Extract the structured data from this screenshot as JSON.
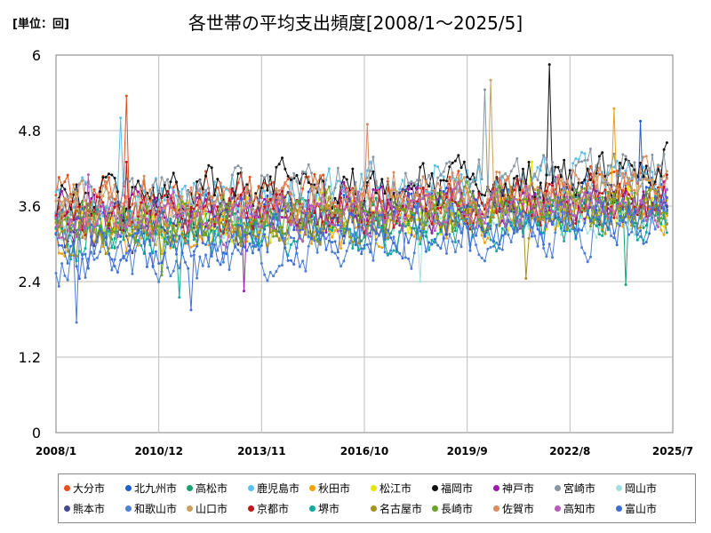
{
  "header": {
    "unit": "[単位：回]",
    "title": "各世帯の平均支出頻度[2008/1～2025/5]"
  },
  "chart_data": {
    "type": "line",
    "title": "各世帯の平均支出頻度[2008/1～2025/5]",
    "ylabel": "[単位：回]",
    "ylim": [
      0,
      6
    ],
    "yticks": [
      "0",
      "1.2",
      "2.4",
      "3.6",
      "4.8",
      "6"
    ],
    "xlim": [
      2008.0,
      2025.5
    ],
    "xticks": [
      {
        "label": "2008/1",
        "value": 2008.0
      },
      {
        "label": "2010/12",
        "value": 2010.917
      },
      {
        "label": "2013/11",
        "value": 2013.833
      },
      {
        "label": "2016/10",
        "value": 2016.75
      },
      {
        "label": "2019/9",
        "value": 2019.667
      },
      {
        "label": "2022/8",
        "value": 2022.583
      },
      {
        "label": "2025/7",
        "value": 2025.5
      }
    ],
    "grid": true,
    "legend_position": "bottom",
    "series": [
      {
        "name": "大分市",
        "color": "#e8501f",
        "base": 3.7,
        "trend": 0.2,
        "amp": 0.45,
        "peak": {
          "t": 2010.0,
          "v": 5.35
        }
      },
      {
        "name": "北九州市",
        "color": "#1f5fd1",
        "base": 3.3,
        "trend": 0.45,
        "amp": 0.45,
        "peak": {
          "t": 2024.6,
          "v": 4.95
        }
      },
      {
        "name": "高松市",
        "color": "#17a371",
        "base": 3.2,
        "trend": 0.35,
        "amp": 0.4,
        "peak": {
          "t": 2024.2,
          "v": 2.35
        }
      },
      {
        "name": "鹿児島市",
        "color": "#5bc0eb",
        "base": 3.6,
        "trend": 0.5,
        "amp": 0.5,
        "peak": {
          "t": 2009.8,
          "v": 5.0
        }
      },
      {
        "name": "秋田市",
        "color": "#f0a30a",
        "base": 3.1,
        "trend": 0.45,
        "amp": 0.4,
        "peak": {
          "t": 2023.8,
          "v": 5.15
        }
      },
      {
        "name": "松江市",
        "color": "#e6e600",
        "base": 3.3,
        "trend": 0.3,
        "amp": 0.4,
        "peak": {
          "t": 2021.5,
          "v": 4.3
        }
      },
      {
        "name": "福岡市",
        "color": "#111111",
        "base": 3.7,
        "trend": 0.45,
        "amp": 0.45,
        "peak": {
          "t": 2022.0,
          "v": 5.85
        }
      },
      {
        "name": "神戸市",
        "color": "#9b1aa8",
        "base": 3.4,
        "trend": 0.3,
        "amp": 0.4,
        "peak": {
          "t": 2013.3,
          "v": 2.25
        }
      },
      {
        "name": "宮崎市",
        "color": "#8a96a3",
        "base": 3.6,
        "trend": 0.6,
        "amp": 0.45,
        "peak": {
          "t": 2020.2,
          "v": 5.45
        }
      },
      {
        "name": "岡山市",
        "color": "#a4e0e0",
        "base": 3.2,
        "trend": 0.3,
        "amp": 0.4,
        "peak": {
          "t": 2018.3,
          "v": 2.4
        }
      },
      {
        "name": "熊本市",
        "color": "#4a4a8a",
        "base": 3.3,
        "trend": 0.3,
        "amp": 0.4,
        "peak": {
          "t": 2024.8,
          "v": 3.45
        }
      },
      {
        "name": "和歌山市",
        "color": "#4e7fd6",
        "base": 2.7,
        "trend": 0.6,
        "amp": 0.45,
        "peak": {
          "t": 2008.6,
          "v": 1.75
        }
      },
      {
        "name": "山口市",
        "color": "#c9a060",
        "base": 3.4,
        "trend": 0.4,
        "amp": 0.4,
        "peak": {
          "t": 2020.3,
          "v": 5.6
        }
      },
      {
        "name": "京都市",
        "color": "#c0171c",
        "base": 3.4,
        "trend": 0.35,
        "amp": 0.4,
        "peak": {
          "t": 2010.0,
          "v": 4.3
        }
      },
      {
        "name": "堺市",
        "color": "#12a89a",
        "base": 3.1,
        "trend": 0.3,
        "amp": 0.4,
        "peak": {
          "t": 2011.5,
          "v": 2.15
        }
      },
      {
        "name": "名古屋市",
        "color": "#a89020",
        "base": 3.2,
        "trend": 0.35,
        "amp": 0.4,
        "peak": {
          "t": 2021.3,
          "v": 2.45
        }
      },
      {
        "name": "長崎市",
        "color": "#6aa329",
        "base": 3.3,
        "trend": 0.35,
        "amp": 0.4,
        "peak": {
          "t": 2011.0,
          "v": 2.5
        }
      },
      {
        "name": "佐賀市",
        "color": "#d98c5f",
        "base": 3.6,
        "trend": 0.4,
        "amp": 0.45,
        "peak": {
          "t": 2016.8,
          "v": 4.9
        }
      },
      {
        "name": "高知市",
        "color": "#b55db5",
        "base": 3.3,
        "trend": 0.35,
        "amp": 0.4,
        "peak": {
          "t": 2008.9,
          "v": 4.1
        }
      },
      {
        "name": "富山市",
        "color": "#3b6fd9",
        "base": 2.9,
        "trend": 0.5,
        "amp": 0.45,
        "peak": {
          "t": 2011.8,
          "v": 1.95
        }
      }
    ]
  }
}
